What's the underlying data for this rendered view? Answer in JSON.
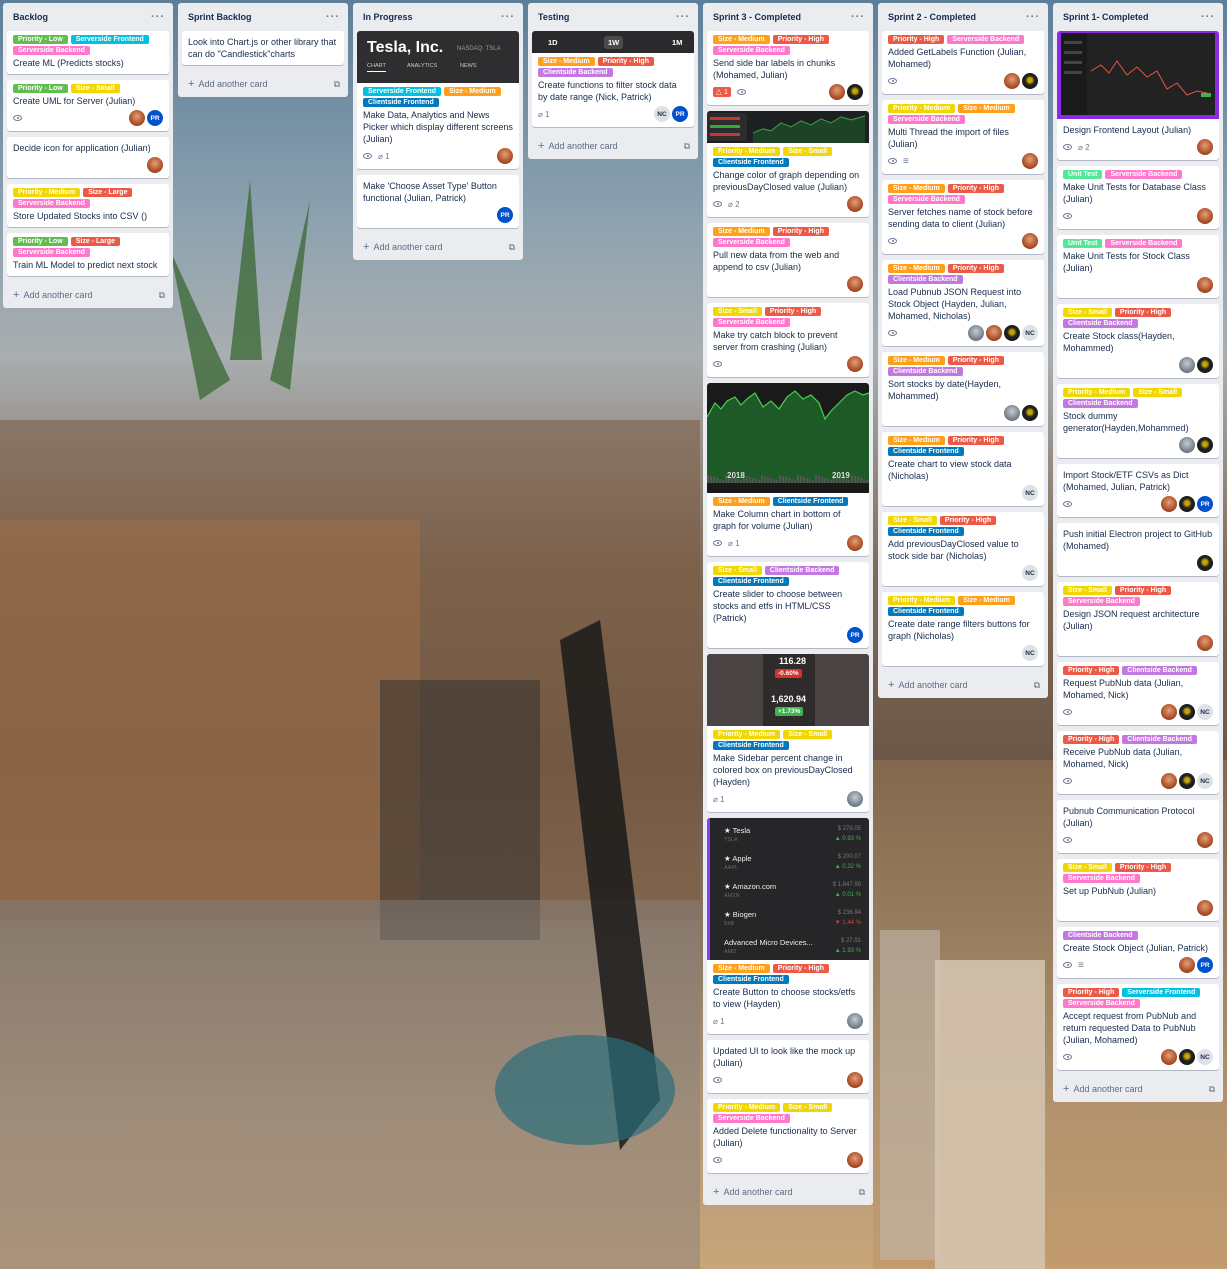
{
  "colors": {
    "Priority - Low": "#61bd4f",
    "Priority - Medium": "#f2d600",
    "Priority - High": "#eb5a46",
    "Size - Small": "#f2d600",
    "Size - Medium": "#ff9f1a",
    "Size - Large": "#eb5a46",
    "Serverside Frontend": "#00c2e0",
    "Serverside Backend": "#ff78cb",
    "Clientside Backend": "#c377e0",
    "Clientside Frontend": "#0079bf",
    "Unit Test": "#51e898"
  },
  "add_card": "Add another card",
  "lists": [
    {
      "title": "Backlog",
      "cards": [
        {
          "labels": [
            "Priority - Low",
            "Serverside Frontend",
            "Serverside Backend"
          ],
          "title": "Create ML (Predicts stocks)"
        },
        {
          "labels": [
            "Priority - Low",
            "Size - Small"
          ],
          "title": "Create UML for Server (Julian)",
          "watch": true,
          "members": [
            "J",
            "PR"
          ]
        },
        {
          "labels": [],
          "title": "Decide icon for application (Julian)",
          "members": [
            "J"
          ]
        },
        {
          "labels": [
            "Priority - Medium",
            "Size - Large",
            "Serverside Backend"
          ],
          "title": "Store Updated Stocks into CSV ()"
        },
        {
          "labels": [
            "Priority - Low",
            "Size - Large",
            "Serverside Backend"
          ],
          "title": "Train ML Model to predict next stock"
        }
      ]
    },
    {
      "title": "Sprint Backlog",
      "cards": [
        {
          "labels": [],
          "title": "Look into Chart.js or other library that can do \"Candlestick\"charts"
        }
      ]
    },
    {
      "title": "In Progress",
      "cards": [
        {
          "cover": "tesla",
          "cover_text": {
            "name": "Tesla, Inc.",
            "ticker": "NASDAQ: TSLA",
            "tabs": [
              "CHART",
              "ANALYTICS",
              "NEWS"
            ]
          },
          "labels": [
            "Serverside Frontend",
            "Size - Medium",
            "Clientside Frontend"
          ],
          "title": "Make Data, Analytics and News Picker which display different screens (Julian)",
          "watch": true,
          "attach": "1",
          "members": [
            "J"
          ]
        },
        {
          "labels": [],
          "title": "Make 'Choose Asset Type' Button functional (Julian, Patrick)",
          "members": [
            "PR"
          ]
        }
      ]
    },
    {
      "title": "Testing",
      "cards": [
        {
          "cover": "range",
          "cover_text": {
            "tabs": [
              "1D",
              "1W",
              "1M"
            ]
          },
          "labels": [
            "Size - Medium",
            "Priority - High",
            "Clientside Backend"
          ],
          "title": "Create functions to filter stock data by date range (Nick, Patrick)",
          "attach": "1",
          "members": [
            "NC",
            "PR"
          ]
        }
      ]
    },
    {
      "title": "Sprint 3 - Completed",
      "cards": [
        {
          "labels": [
            "Size - Medium",
            "Priority - High",
            "Serverside Backend"
          ],
          "title": "Send side bar labels in chunks (Mohamed, Julian)",
          "notif": "1",
          "watch": true,
          "members": [
            "J",
            "M"
          ]
        },
        {
          "cover": "minichart",
          "labels": [
            "Priority - Medium",
            "Size - Small",
            "Clientside Frontend"
          ],
          "title": "Change color of graph depending on previousDayClosed value (Julian)",
          "watch": true,
          "attach": "2",
          "members": [
            "J"
          ]
        },
        {
          "labels": [
            "Size - Medium",
            "Priority - High",
            "Serverside Backend"
          ],
          "title": "Pull new data from the web and append to csv (Julian)",
          "members": [
            "J"
          ]
        },
        {
          "labels": [
            "Size - Small",
            "Priority - High",
            "Serverside Backend"
          ],
          "title": "Make try catch block to prevent server from crashing (Julian)",
          "watch": true,
          "members": [
            "J"
          ]
        },
        {
          "cover": "bigchart",
          "cover_text": {
            "years": [
              "2018",
              "2019"
            ]
          },
          "labels": [
            "Size - Medium",
            "Clientside Frontend"
          ],
          "title": "Make Column chart in bottom of graph for volume (Julian)",
          "watch": true,
          "attach": "1",
          "members": [
            "J"
          ]
        },
        {
          "labels": [
            "Size - Small",
            "Clientside Backend",
            "Clientside Frontend"
          ],
          "title": "Create slider to choose between stocks and etfs in HTML/CSS (Patrick)",
          "members": [
            "PR"
          ]
        },
        {
          "cover": "prices",
          "cover_text": {
            "p1": "116.28",
            "c1": "-0.60%",
            "p2": "1,620.94",
            "c2": "+1.73%"
          },
          "labels": [
            "Priority - Medium",
            "Size - Small",
            "Clientside Frontend"
          ],
          "title": "Make Sidebar percent change in colored box on previousDayClosed (Hayden)",
          "attach": "1",
          "members": [
            "H"
          ]
        },
        {
          "cover": "stocklist",
          "cover_text": {
            "rows": [
              {
                "name": "★ Tesla",
                "sym": "TSLA",
                "price": "$ 276.05",
                "chg": "▲ 0.93 %",
                "up": true
              },
              {
                "name": "★ Apple",
                "sym": "AAPL",
                "price": "$ 200.07",
                "chg": "▲ 0.32 %",
                "up": true
              },
              {
                "name": "★ Amazon.com",
                "sym": "AMZN",
                "price": "$ 1,847.99",
                "chg": "▲ 0.01 %",
                "up": true
              },
              {
                "name": "★ Biogen",
                "sym": "BIIB",
                "price": "$ 236.94",
                "chg": "▼ 1.44 %",
                "up": false
              },
              {
                "name": "Advanced Micro Devices...",
                "sym": "AMD",
                "price": "$ 27.91",
                "chg": "▲ 1.93 %",
                "up": true
              }
            ]
          },
          "labels": [
            "Size - Medium",
            "Priority - High",
            "Clientside Frontend"
          ],
          "title": "Create Button to choose stocks/etfs to view (Hayden)",
          "attach": "1",
          "members": [
            "H"
          ]
        },
        {
          "labels": [],
          "title": "Updated UI to look like the mock up (Julian)",
          "watch": true,
          "members": [
            "J"
          ]
        },
        {
          "labels": [
            "Priority - Medium",
            "Size - Small",
            "Serverside Backend"
          ],
          "title": "Added Delete functionality to Server (Julian)",
          "watch": true,
          "members": [
            "J"
          ]
        }
      ]
    },
    {
      "title": "Sprint 2 - Completed",
      "cards": [
        {
          "labels": [
            "Priority - High",
            "Serverside Backend"
          ],
          "title": "Added GetLabels Function (Julian, Mohamed)",
          "watch": true,
          "members": [
            "J",
            "M"
          ]
        },
        {
          "labels": [
            "Priority - Medium",
            "Size - Medium",
            "Serverside Backend"
          ],
          "title": "Multi Thread the import of files (Julian)",
          "watch": true,
          "desc": true,
          "members": [
            "J"
          ]
        },
        {
          "labels": [
            "Size - Medium",
            "Priority - High",
            "Serverside Backend"
          ],
          "title": "Server fetches name of stock before sending data to client (Julian)",
          "watch": true,
          "members": [
            "J"
          ]
        },
        {
          "labels": [
            "Size - Medium",
            "Priority - High",
            "Clientside Backend"
          ],
          "title": "Load Pubnub JSON Request into Stock Object (Hayden, Julian, Mohamed, Nicholas)",
          "watch": true,
          "members": [
            "H",
            "J",
            "M",
            "NC"
          ]
        },
        {
          "labels": [
            "Size - Medium",
            "Priority - High",
            "Clientside Backend"
          ],
          "title": "Sort stocks by date(Hayden, Mohammed)",
          "members": [
            "H",
            "M"
          ]
        },
        {
          "labels": [
            "Size - Medium",
            "Priority - High",
            "Clientside Frontend"
          ],
          "title": "Create chart to view stock data (Nicholas)",
          "members": [
            "NC"
          ]
        },
        {
          "labels": [
            "Size - Small",
            "Priority - High",
            "Clientside Frontend"
          ],
          "title": "Add previousDayClosed value to stock side bar (Nicholas)",
          "members": [
            "NC"
          ]
        },
        {
          "labels": [
            "Priority - Medium",
            "Size - Medium",
            "Clientside Frontend"
          ],
          "title": "Create date range filters buttons for graph (Nicholas)",
          "members": [
            "NC"
          ]
        }
      ]
    },
    {
      "title": "Sprint 1- Completed",
      "cards": [
        {
          "cover": "design",
          "labels": [],
          "title": "Design Frontend Layout (Julian)",
          "watch": true,
          "attach": "2",
          "members": [
            "J"
          ]
        },
        {
          "labels": [
            "Unit Test",
            "Serverside Backend"
          ],
          "title": "Make Unit Tests for Database Class (Julian)",
          "watch": true,
          "members": [
            "J"
          ]
        },
        {
          "labels": [
            "Unit Test",
            "Serverside Backend"
          ],
          "title": "Make Unit Tests for Stock Class (Julian)",
          "members": [
            "J"
          ]
        },
        {
          "labels": [
            "Size - Small",
            "Priority - High",
            "Clientside Backend"
          ],
          "title": "Create Stock class(Hayden, Mohammed)",
          "members": [
            "H",
            "M"
          ]
        },
        {
          "labels": [
            "Priority - Medium",
            "Size - Small",
            "Clientside Backend"
          ],
          "title": "Stock dummy generator(Hayden,Mohammed)",
          "members": [
            "H",
            "M"
          ]
        },
        {
          "labels": [],
          "title": "Import Stock/ETF CSVs as Dict (Mohamed, Julian, Patrick)",
          "watch": true,
          "members": [
            "J",
            "M",
            "PR"
          ]
        },
        {
          "labels": [],
          "title": "Push initial Electron project to GitHub (Mohamed)",
          "members": [
            "M"
          ]
        },
        {
          "labels": [
            "Size - Small",
            "Priority - High",
            "Serverside Backend"
          ],
          "title": "Design JSON request architecture (Julian)",
          "members": [
            "J"
          ]
        },
        {
          "labels": [
            "Priority - High",
            "Clientside Backend"
          ],
          "title": "Request PubNub data (Julian, Mohamed, Nick)",
          "watch": true,
          "members": [
            "J",
            "M",
            "NC"
          ]
        },
        {
          "labels": [
            "Priority - High",
            "Clientside Backend"
          ],
          "title": "Receive PubNub data (Julian, Mohamed, Nick)",
          "watch": true,
          "members": [
            "J",
            "M",
            "NC"
          ]
        },
        {
          "labels": [],
          "title": "Pubnub Communication Protocol (Julian)",
          "watch": true,
          "members": [
            "J"
          ]
        },
        {
          "labels": [
            "Size - Small",
            "Priority - High",
            "Serverside Backend"
          ],
          "title": "Set up PubNub (Julian)",
          "members": [
            "J"
          ]
        },
        {
          "labels": [
            "Clientside Backend"
          ],
          "title": "Create Stock Object (Julian, Patrick)",
          "watch": true,
          "desc": true,
          "members": [
            "J",
            "PR"
          ]
        },
        {
          "labels": [
            "Priority - High",
            "Serverside Frontend",
            "Serverside Backend"
          ],
          "title": "Accept request from PubNub and return requested Data to PubNub (Julian, Mohamed)",
          "watch": true,
          "members": [
            "J",
            "M",
            "NC"
          ]
        }
      ]
    }
  ]
}
